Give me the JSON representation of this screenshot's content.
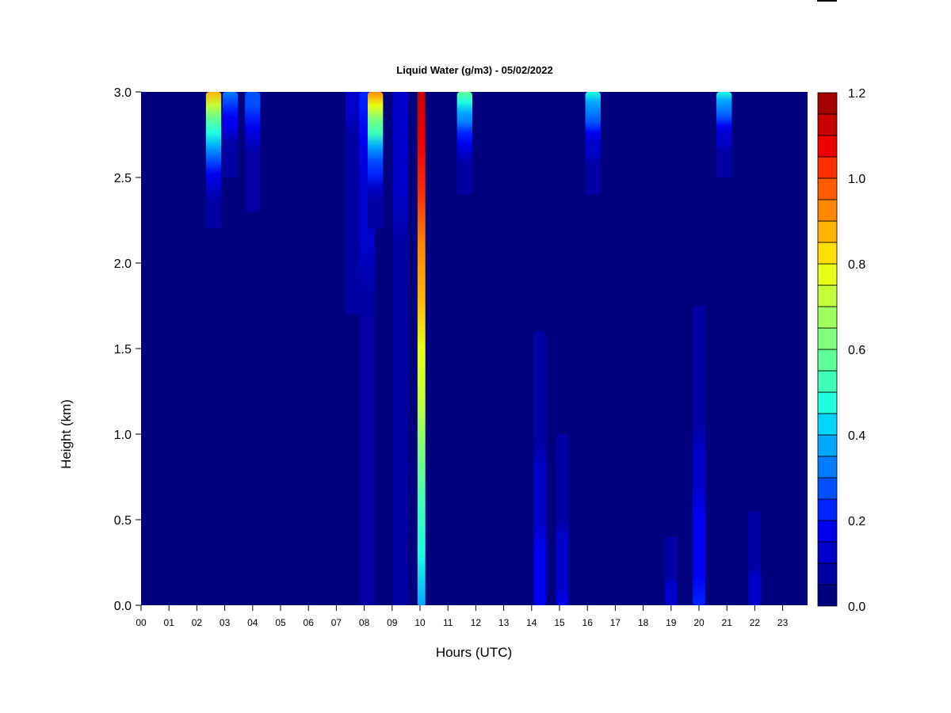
{
  "chart_data": {
    "type": "heatmap",
    "title": "Liquid Water (g/m3) - 05/02/2022",
    "xlabel": "Hours (UTC)",
    "ylabel": "Height (km)",
    "xlim": [
      0,
      24
    ],
    "ylim": [
      0,
      3.0
    ],
    "x_ticks": [
      "00",
      "01",
      "02",
      "03",
      "04",
      "05",
      "06",
      "07",
      "08",
      "09",
      "10",
      "11",
      "12",
      "13",
      "14",
      "15",
      "16",
      "17",
      "18",
      "19",
      "20",
      "21",
      "22",
      "23"
    ],
    "y_ticks": [
      "0.0",
      "0.5",
      "1.0",
      "1.5",
      "2.0",
      "2.5",
      "3.0"
    ],
    "colorbar": {
      "min": 0.0,
      "max": 1.2,
      "step": 0.05,
      "tick_labels": [
        "0.0",
        "0.2",
        "0.4",
        "0.6",
        "0.8",
        "1.0",
        "1.2"
      ],
      "colors": [
        "#00007f",
        "#0000a3",
        "#0000c8",
        "#0000ee",
        "#0024ff",
        "#0050ff",
        "#007cff",
        "#00a8ff",
        "#00d4ff",
        "#1effe0",
        "#3effb8",
        "#5eff97",
        "#7eff7e",
        "#a0ff5e",
        "#c4ff3a",
        "#e8ff16",
        "#ffe000",
        "#ffb400",
        "#ff8800",
        "#ff5c00",
        "#ff3000",
        "#ee0000",
        "#c80000",
        "#a30000"
      ]
    },
    "features": [
      {
        "hour": 2.6,
        "base_km": 2.2,
        "top_km": 3.0,
        "peak": 0.85
      },
      {
        "hour": 3.2,
        "base_km": 2.5,
        "top_km": 3.0,
        "peak": 0.35
      },
      {
        "hour": 4.0,
        "base_km": 2.3,
        "top_km": 3.0,
        "peak": 0.3
      },
      {
        "hour": 7.6,
        "base_km": 1.7,
        "top_km": 3.0,
        "peak": 0.12
      },
      {
        "hour": 8.1,
        "base_km": 0.0,
        "top_km": 3.0,
        "peak": 0.2
      },
      {
        "hour": 8.4,
        "base_km": 2.2,
        "top_km": 3.0,
        "peak": 0.9
      },
      {
        "hour": 9.3,
        "base_km": 0.0,
        "top_km": 3.0,
        "peak": 0.15
      },
      {
        "hour": 10.05,
        "base_km": 0.0,
        "top_km": 3.0,
        "peak": 1.15
      },
      {
        "hour": 11.6,
        "base_km": 2.4,
        "top_km": 3.0,
        "peak": 0.55
      },
      {
        "hour": 14.3,
        "base_km": 0.0,
        "top_km": 1.6,
        "peak": 0.18
      },
      {
        "hour": 15.1,
        "base_km": 0.0,
        "top_km": 1.0,
        "peak": 0.16
      },
      {
        "hour": 16.2,
        "base_km": 2.4,
        "top_km": 3.0,
        "peak": 0.45
      },
      {
        "hour": 19.0,
        "base_km": 0.0,
        "top_km": 0.4,
        "peak": 0.15
      },
      {
        "hour": 20.0,
        "base_km": 0.0,
        "top_km": 1.75,
        "peak": 0.2
      },
      {
        "hour": 20.9,
        "base_km": 2.5,
        "top_km": 3.0,
        "peak": 0.45
      },
      {
        "hour": 22.0,
        "base_km": 0.0,
        "top_km": 0.55,
        "peak": 0.15
      }
    ]
  }
}
